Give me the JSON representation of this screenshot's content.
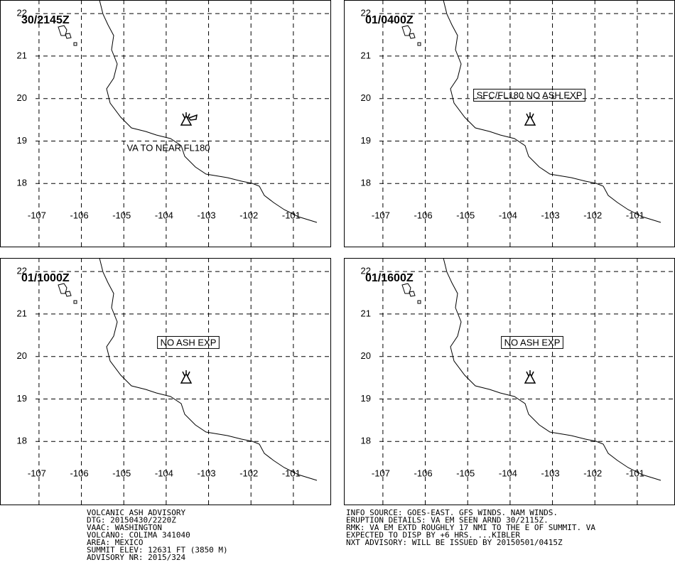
{
  "panels": [
    {
      "time": "30/2145Z",
      "annotation": "VA TO NEAR FL180"
    },
    {
      "time": "01/0400Z",
      "annotation": "SFC/FL180 NO ASH EXP"
    },
    {
      "time": "01/1000Z",
      "annotation": "NO ASH EXP"
    },
    {
      "time": "01/1600Z",
      "annotation": "NO ASH EXP"
    }
  ],
  "map": {
    "xlim": [
      -107.92,
      -100.11
    ],
    "ylim": [
      16.5,
      22.32
    ],
    "xticks": [
      -107,
      -106,
      -105,
      -104,
      -103,
      -102,
      -101
    ],
    "yticks": [
      18,
      19,
      20,
      21,
      22
    ],
    "grid": true
  },
  "footer": {
    "left": [
      "VOLCANIC ASH ADVISORY",
      "DTG: 20150430/2220Z",
      "VAAC: WASHINGTON",
      "VOLCANO: COLIMA 341040",
      "AREA: MEXICO",
      "SUMMIT ELEV: 12631 FT (3850 M)",
      "ADVISORY NR: 2015/324"
    ],
    "right": [
      "INFO SOURCE: GOES-EAST. GFS WINDS. NAM WINDS.",
      "ERUPTION DETAILS: VA EM SEEN ARND 30/2115Z.",
      "RMK: VA EM EXTD ROUGHLY 17 NMI TO THE E OF SUMMIT. VA",
      "EXPECTED TO DISP BY +6 HRS. ...KIBLER",
      "NXT ADVISORY: WILL BE ISSUED BY 20150501/0415Z"
    ]
  }
}
